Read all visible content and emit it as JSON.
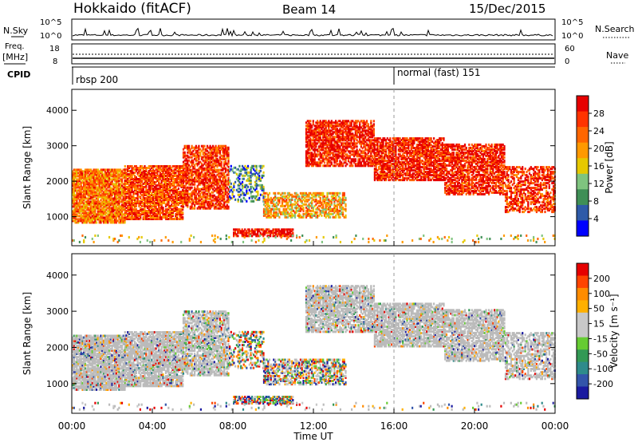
{
  "header": {
    "station": "Hokkaido (fitACF)",
    "beam": "Beam 14",
    "date": "15/Dec/2015"
  },
  "panels": {
    "nsky": {
      "label": "N.Sky",
      "y_ticks": [
        "10^5",
        "10^0"
      ],
      "right_ticks": [
        "10^5",
        "10^0"
      ],
      "right_label": "N.Search"
    },
    "freq": {
      "label_line1": "Freq.",
      "label_line2": "[MHz]",
      "y_ticks": [
        "18",
        "8"
      ],
      "right_ticks": [
        "60",
        "0"
      ],
      "right_label": "Nave"
    },
    "cpid": {
      "label": "CPID",
      "segments": [
        {
          "label": "rbsp 200",
          "start_hour": 0
        },
        {
          "label": "normal (fast) 151",
          "start_hour": 16
        }
      ]
    }
  },
  "colors": {
    "power": [
      "#0000ff",
      "#2e5aa8",
      "#3f8f56",
      "#7fc47f",
      "#e6c800",
      "#ff9900",
      "#ff6600",
      "#ff3300",
      "#e60000"
    ],
    "velocity": [
      "#e60000",
      "#ff4400",
      "#ff8c00",
      "#ffb000",
      "#c8c8c8",
      "#c8c8c8",
      "#66cc33",
      "#339955",
      "#2e8b8b",
      "#3355aa",
      "#1a1aa0"
    ],
    "ground_scatter": "#bbbbbb"
  },
  "power_colorbar": {
    "label": "Power [dB]",
    "ticks": [
      "28",
      "24",
      "20",
      "16",
      "12",
      "8",
      "4"
    ]
  },
  "velocity_colorbar": {
    "label": "Velocity [m s⁻¹]",
    "ticks": [
      "200",
      "100",
      "50",
      "15",
      "-15",
      "-50",
      "-100",
      "-200"
    ]
  },
  "chart_data": {
    "type": "heatmap",
    "xlabel": "Time UT",
    "ylabel": "Slant Range [km]",
    "x_ticks": [
      "00:00",
      "04:00",
      "08:00",
      "12:00",
      "16:00",
      "20:00",
      "00:00"
    ],
    "xlim_hours": [
      0,
      24
    ],
    "ylim_km": [
      180,
      4590
    ],
    "y_ticks_km": [
      1000,
      2000,
      3000,
      4000
    ],
    "cpid_change_hour": 16,
    "power_range_db": [
      0,
      30
    ],
    "velocity_range_ms": [
      -250,
      250
    ]
  }
}
